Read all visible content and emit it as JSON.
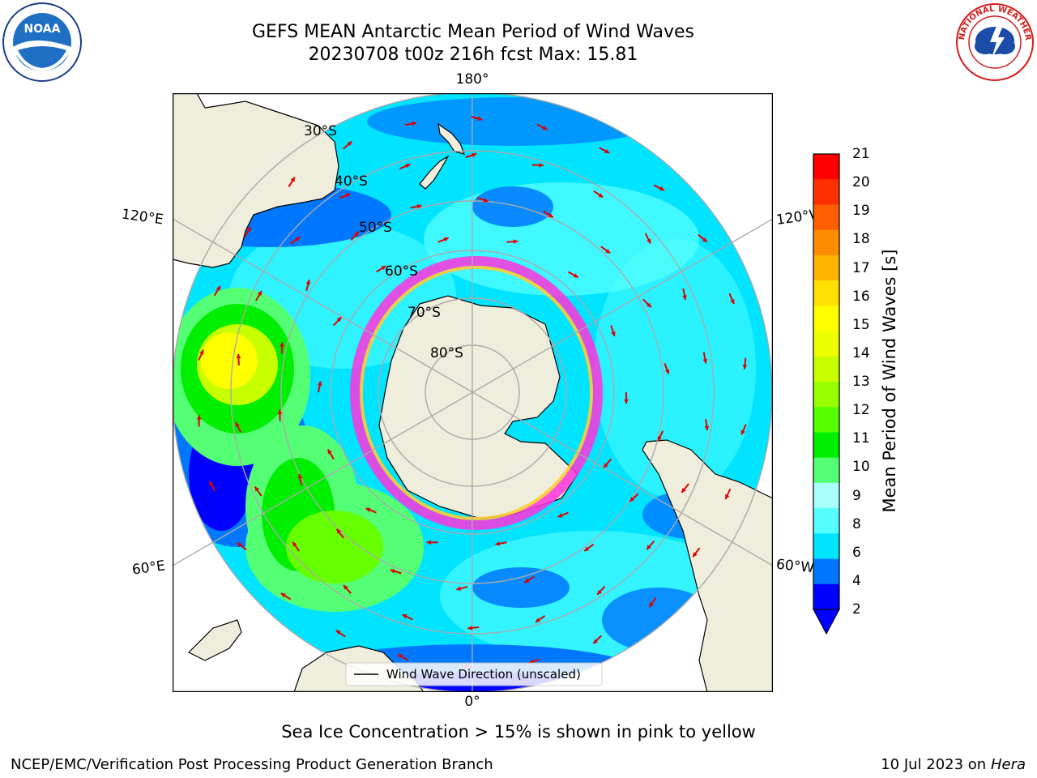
{
  "title": {
    "line1": "GEFS MEAN Antarctic Mean Period of Wind Waves",
    "line2": "20230708 t00z 216h fcst   Max: 15.81"
  },
  "map": {
    "projection": "south-polar-stereographic",
    "lon_labels": {
      "top": "180°",
      "bottom": "0°",
      "upper_left": "120°E",
      "upper_right": "120°W",
      "lower_left": "60°E",
      "lower_right": "60°W"
    },
    "lat_labels": [
      "30°S",
      "40°S",
      "50°S",
      "60°S",
      "70°S",
      "80°S"
    ],
    "legend_label": "Wind Wave Direction (unscaled)",
    "arrow_color": "#e00000",
    "land_color": "#efeddc",
    "ocean_colors": [
      "#0000ff",
      "#0077ff",
      "#00e4ff",
      "#55ffff",
      "#55ff75",
      "#00ee00",
      "#66ff00",
      "#c8ff00",
      "#ffff00"
    ]
  },
  "colorbar": {
    "title": "Mean Period of Wind Waves [s]",
    "ticks": [
      "21",
      "20",
      "19",
      "18",
      "17",
      "16",
      "15",
      "14",
      "13",
      "12",
      "11",
      "10",
      "9",
      "8",
      "6",
      "4",
      "2"
    ],
    "colors": [
      "#ff0000",
      "#ff3000",
      "#ff5e00",
      "#ff8c00",
      "#ffb400",
      "#ffe000",
      "#ffff00",
      "#eeff00",
      "#c8ff00",
      "#96ff00",
      "#55ff00",
      "#00ee00",
      "#55ff75",
      "#aaffff",
      "#55ffff",
      "#00e4ff",
      "#0077ff",
      "#0000ff"
    ]
  },
  "note": "Sea Ice Concentration > 15% is shown in pink to yellow",
  "footer": {
    "left": "NCEP/EMC/Verification Post Processing Product Generation Branch",
    "date": "10 Jul 2023 on ",
    "machine": "Hera"
  },
  "logos": {
    "noaa_text": "NOAA",
    "nws_text": "NATIONAL WEATHER SERVICE"
  }
}
